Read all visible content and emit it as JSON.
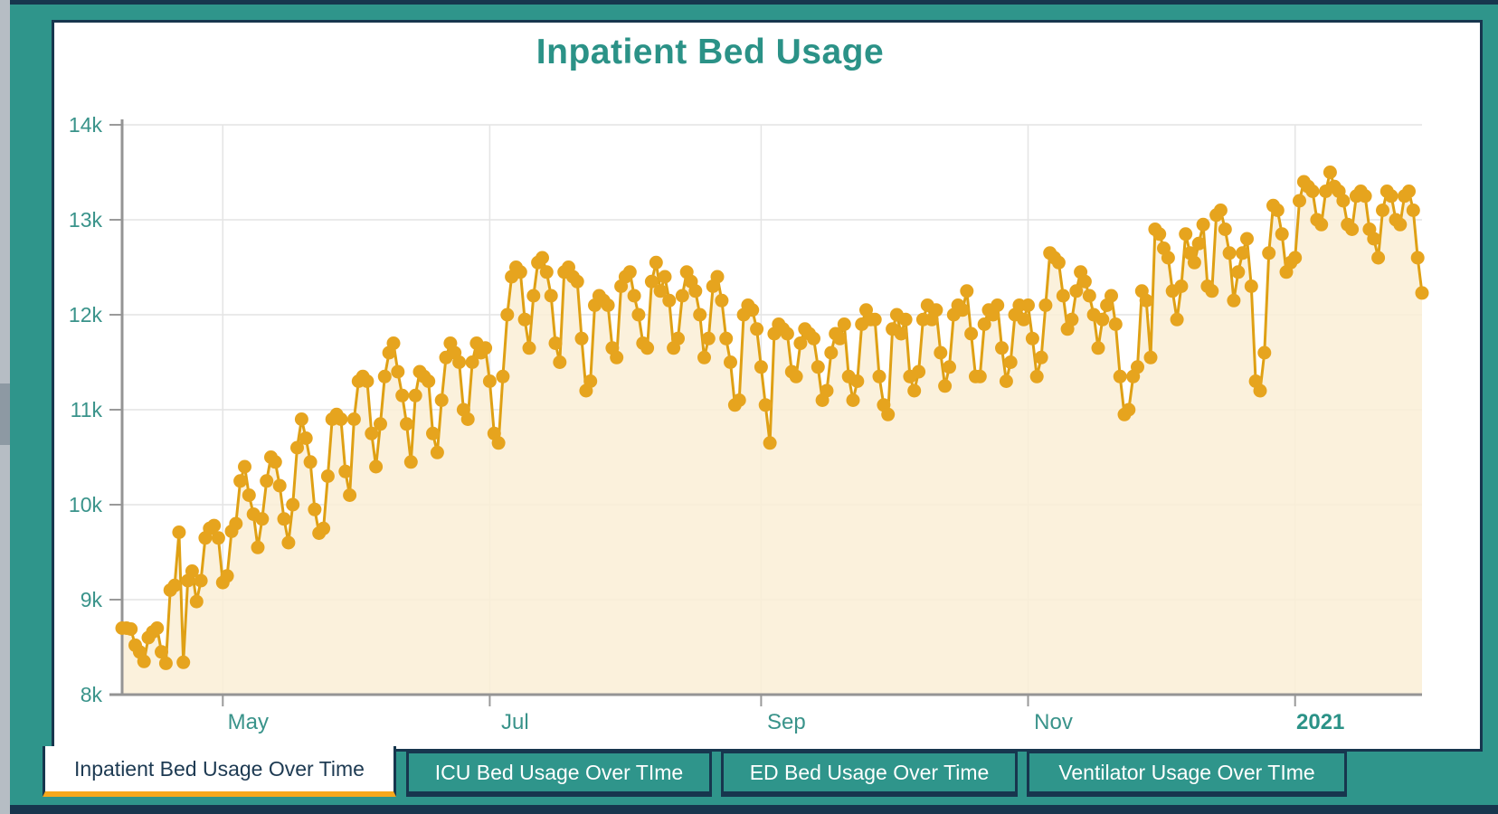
{
  "header": {
    "title": "Inpatient Bed Usage"
  },
  "tabs": [
    {
      "label": "Inpatient Bed Usage Over Time",
      "active": true
    },
    {
      "label": "ICU Bed Usage Over TIme",
      "active": false
    },
    {
      "label": "ED Bed Usage Over Time",
      "active": false
    },
    {
      "label": "Ventilator Usage Over TIme",
      "active": false
    }
  ],
  "colors": {
    "frame_teal": "#2F958B",
    "frame_navy": "#17364E",
    "title_teal": "#2B9287",
    "axis_label_teal": "#39938A",
    "series_gold": "#E6A41E",
    "area_cream": "#FAEED6",
    "active_tab_underline": "#F5A81C",
    "active_tab_text": "#1D3A52",
    "inactive_tab_text": "#FFFFFF"
  },
  "chart_data": {
    "type": "line",
    "title": "Inpatient Bed Usage",
    "mode": "lines+markers+area",
    "grid": true,
    "legend": "none",
    "x_axis": {
      "frequency": "daily",
      "start_date": "2020-04-08",
      "tick_labels": [
        "May",
        "Jul",
        "Sep",
        "Nov",
        "2021"
      ],
      "tick_day_indices": [
        23,
        84,
        146,
        207,
        268
      ]
    },
    "y_axis": {
      "tick_labels": [
        "14k",
        "13k",
        "12k",
        "11k",
        "10k",
        "9k",
        "8k"
      ],
      "tick_values": [
        14000,
        13000,
        12000,
        11000,
        10000,
        9000,
        8000
      ],
      "range": [
        8000,
        14000
      ]
    },
    "values": [
      8700,
      8700,
      8690,
      8520,
      8450,
      8350,
      8600,
      8660,
      8700,
      8450,
      8330,
      9100,
      9150,
      9710,
      8340,
      9200,
      9300,
      8980,
      9200,
      9650,
      9750,
      9780,
      9650,
      9180,
      9250,
      9720,
      9800,
      10250,
      10400,
      10100,
      9900,
      9550,
      9850,
      10250,
      10500,
      10450,
      10200,
      9850,
      9600,
      10000,
      10600,
      10900,
      10700,
      10450,
      9950,
      9700,
      9750,
      10300,
      10900,
      10950,
      10900,
      10350,
      10100,
      10900,
      11300,
      11350,
      11300,
      10750,
      10400,
      10850,
      11350,
      11600,
      11700,
      11400,
      11150,
      10850,
      10450,
      11150,
      11400,
      11350,
      11300,
      10750,
      10550,
      11100,
      11550,
      11700,
      11600,
      11500,
      11000,
      10900,
      11500,
      11700,
      11600,
      11650,
      11300,
      10750,
      10650,
      11350,
      12000,
      12400,
      12500,
      12450,
      11950,
      11650,
      12200,
      12550,
      12600,
      12450,
      12200,
      11700,
      11500,
      12450,
      12500,
      12400,
      12350,
      11750,
      11200,
      11300,
      12100,
      12200,
      12150,
      12100,
      11650,
      11550,
      12300,
      12400,
      12450,
      12200,
      12000,
      11700,
      11650,
      12350,
      12550,
      12250,
      12400,
      12150,
      11650,
      11750,
      12200,
      12450,
      12350,
      12250,
      12000,
      11550,
      11750,
      12300,
      12400,
      12150,
      11750,
      11500,
      11050,
      11100,
      12000,
      12100,
      12050,
      11850,
      11450,
      11050,
      10650,
      11800,
      11900,
      11850,
      11800,
      11400,
      11350,
      11700,
      11850,
      11800,
      11750,
      11450,
      11100,
      11200,
      11600,
      11800,
      11750,
      11900,
      11350,
      11100,
      11300,
      11900,
      12050,
      11950,
      11950,
      11350,
      11050,
      10950,
      11850,
      12000,
      11800,
      11950,
      11350,
      11200,
      11400,
      11950,
      12100,
      11950,
      12050,
      11600,
      11250,
      11450,
      12000,
      12100,
      12050,
      12250,
      11800,
      11350,
      11350,
      11900,
      12050,
      12000,
      12100,
      11650,
      11300,
      11500,
      12000,
      12100,
      11950,
      12100,
      11750,
      11350,
      11550,
      12100,
      12650,
      12600,
      12550,
      12200,
      11850,
      11950,
      12250,
      12450,
      12350,
      12200,
      12000,
      11650,
      11950,
      12100,
      12200,
      11900,
      11350,
      10950,
      11000,
      11350,
      11450,
      12250,
      12150,
      11550,
      12900,
      12850,
      12700,
      12600,
      12250,
      11950,
      12300,
      12850,
      12650,
      12550,
      12750,
      12950,
      12300,
      12250,
      13050,
      13100,
      12900,
      12650,
      12150,
      12450,
      12650,
      12800,
      12300,
      11300,
      11200,
      11600,
      12650,
      13150,
      13100,
      12850,
      12450,
      12550,
      12600,
      13200,
      13400,
      13350,
      13300,
      13000,
      12950,
      13300,
      13500,
      13350,
      13300,
      13200,
      12950,
      12900,
      13250,
      13300,
      13250,
      12900,
      12800,
      12600,
      13100,
      13300,
      13250,
      13000,
      12950,
      13250,
      13300,
      13100,
      12600,
      12230
    ]
  }
}
